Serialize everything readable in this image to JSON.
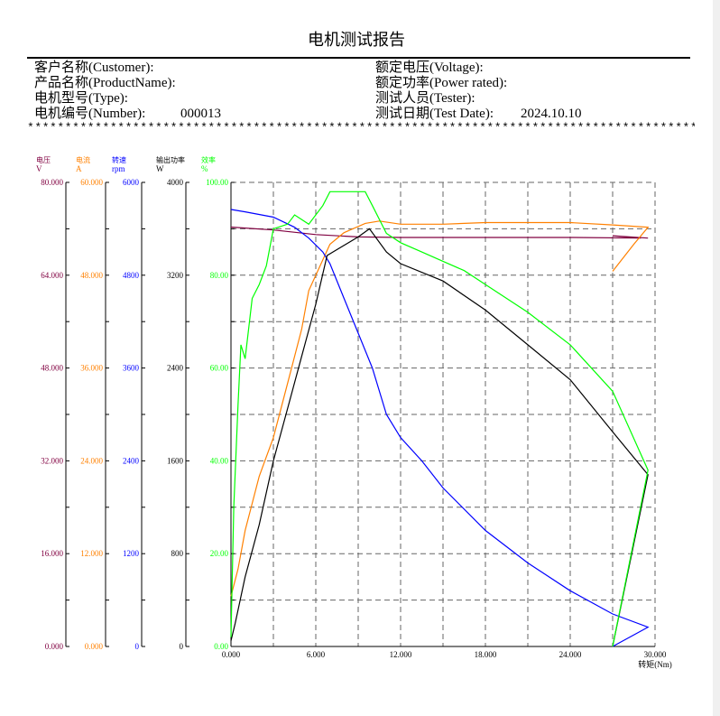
{
  "report": {
    "title": "电机测试报告",
    "left_fields": [
      {
        "label": "客户名称(Customer):",
        "value": ""
      },
      {
        "label": "产品名称(ProductName):",
        "value": ""
      },
      {
        "label": "电机型号(Type):",
        "value": ""
      },
      {
        "label": "电机编号(Number):",
        "value": "000013"
      }
    ],
    "right_fields": [
      {
        "label": "额定电压(Voltage):",
        "value": ""
      },
      {
        "label": "额定功率(Power rated):",
        "value": ""
      },
      {
        "label": "测试人员(Tester):",
        "value": ""
      },
      {
        "label": "测试日期(Test Date):",
        "value": "2024.10.10"
      }
    ],
    "separator": "**************************************************************************************************"
  },
  "colors": {
    "voltage": "#800040",
    "current": "#ff8000",
    "speed": "#0000ff",
    "power": "#000000",
    "efficiency": "#00ff00"
  },
  "chart_data": {
    "type": "line",
    "xlabel": "转矩(Nm)",
    "x_ticks": [
      "0.000",
      "6.000",
      "12.000",
      "18.000",
      "24.000",
      "30.000"
    ],
    "xlim": [
      0,
      30
    ],
    "grid": true,
    "axes": [
      {
        "key": "voltage",
        "name": "电压",
        "unit": "V",
        "ylim": [
          0,
          80
        ],
        "ticks": [
          "0.000",
          "16.000",
          "32.000",
          "48.000",
          "64.000",
          "80.000"
        ]
      },
      {
        "key": "current",
        "name": "电流",
        "unit": "A",
        "ylim": [
          0,
          60
        ],
        "ticks": [
          "0.000",
          "12.000",
          "24.000",
          "36.000",
          "48.000",
          "60.000"
        ]
      },
      {
        "key": "speed",
        "name": "转速",
        "unit": "rpm",
        "ylim": [
          0,
          6000
        ],
        "ticks": [
          "0",
          "1200",
          "2400",
          "3600",
          "4800",
          "6000"
        ]
      },
      {
        "key": "power",
        "name": "输出功率",
        "unit": "W",
        "ylim": [
          0,
          4000
        ],
        "ticks": [
          "0",
          "800",
          "1600",
          "2400",
          "3200",
          "4000"
        ]
      },
      {
        "key": "efficiency",
        "name": "效率",
        "unit": "%",
        "ylim": [
          0,
          100
        ],
        "ticks": [
          "0.00",
          "20.00",
          "40.00",
          "60.00",
          "80.00",
          "100.00"
        ]
      }
    ],
    "series": [
      {
        "key": "voltage",
        "points": [
          [
            0,
            72.3
          ],
          [
            3,
            71.8
          ],
          [
            6,
            71.0
          ],
          [
            9,
            70.6
          ],
          [
            12,
            70.5
          ],
          [
            18,
            70.5
          ],
          [
            24,
            70.5
          ],
          [
            29,
            70.4
          ],
          [
            27.0,
            70.8
          ],
          [
            29.5,
            70.4
          ]
        ]
      },
      {
        "key": "current",
        "points": [
          [
            0,
            6.5
          ],
          [
            0.5,
            10
          ],
          [
            1.0,
            15
          ],
          [
            2.0,
            22
          ],
          [
            3.0,
            27
          ],
          [
            4.0,
            34
          ],
          [
            5.0,
            41
          ],
          [
            5.5,
            46
          ],
          [
            7.0,
            52
          ],
          [
            8.0,
            53.5
          ],
          [
            9.5,
            54.7
          ],
          [
            10.5,
            55.0
          ],
          [
            12.0,
            54.6
          ],
          [
            15.0,
            54.6
          ],
          [
            18.0,
            54.8
          ],
          [
            24.0,
            54.8
          ],
          [
            27.0,
            54.5
          ],
          [
            29.5,
            54.2
          ],
          [
            28.5,
            52.0
          ],
          [
            27.0,
            48.5
          ]
        ]
      },
      {
        "key": "speed",
        "points": [
          [
            0,
            5650
          ],
          [
            1.0,
            5620
          ],
          [
            3.0,
            5550
          ],
          [
            4.5,
            5420
          ],
          [
            5.5,
            5280
          ],
          [
            6.5,
            5100
          ],
          [
            7.0,
            4950
          ],
          [
            8.0,
            4500
          ],
          [
            9.0,
            4050
          ],
          [
            10.0,
            3600
          ],
          [
            11.0,
            3000
          ],
          [
            12.0,
            2700
          ],
          [
            13.5,
            2400
          ],
          [
            15.0,
            2050
          ],
          [
            18.0,
            1500
          ],
          [
            21.0,
            1080
          ],
          [
            24.0,
            720
          ],
          [
            27.0,
            420
          ],
          [
            29.5,
            250
          ],
          [
            27.0,
            0
          ]
        ]
      },
      {
        "key": "power",
        "points": [
          [
            0,
            50
          ],
          [
            0.3,
            200
          ],
          [
            1.0,
            600
          ],
          [
            2.0,
            1050
          ],
          [
            3.0,
            1600
          ],
          [
            4.0,
            2050
          ],
          [
            5.0,
            2500
          ],
          [
            6.0,
            2950
          ],
          [
            6.8,
            3370
          ],
          [
            9.0,
            3530
          ],
          [
            9.8,
            3600
          ],
          [
            11.0,
            3400
          ],
          [
            12.0,
            3300
          ],
          [
            15.0,
            3150
          ],
          [
            18.0,
            2900
          ],
          [
            21.0,
            2600
          ],
          [
            24.0,
            2300
          ],
          [
            27.0,
            1850
          ],
          [
            29.5,
            1480
          ],
          [
            27.0,
            0
          ]
        ]
      },
      {
        "key": "efficiency",
        "points": [
          [
            0,
            2
          ],
          [
            0.2,
            30
          ],
          [
            0.5,
            52
          ],
          [
            0.7,
            65
          ],
          [
            1.0,
            62
          ],
          [
            1.5,
            75
          ],
          [
            2.0,
            78
          ],
          [
            2.5,
            82
          ],
          [
            3.0,
            90
          ],
          [
            4.0,
            91
          ],
          [
            4.5,
            93
          ],
          [
            5.5,
            91
          ],
          [
            6.0,
            93
          ],
          [
            6.5,
            95
          ],
          [
            7.0,
            98
          ],
          [
            9.5,
            98
          ],
          [
            10.0,
            95
          ],
          [
            11.0,
            89
          ],
          [
            12.0,
            87
          ],
          [
            13.5,
            85
          ],
          [
            15.0,
            83
          ],
          [
            16.5,
            81
          ],
          [
            18.0,
            78
          ],
          [
            21.0,
            72
          ],
          [
            24.0,
            65
          ],
          [
            27.0,
            55
          ],
          [
            29.5,
            38
          ],
          [
            27.0,
            0
          ]
        ]
      }
    ]
  }
}
